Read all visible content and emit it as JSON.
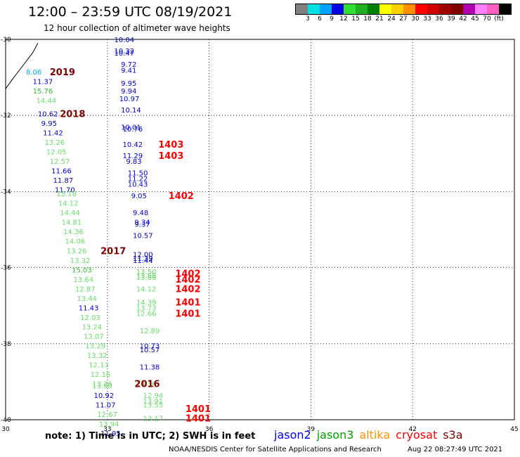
{
  "title": "12:00 – 23:59 UTC 08/19/2021",
  "subtitle": "12 hour collection of altimeter wave heights",
  "scale": {
    "colors": [
      "#808080",
      "#00e0e0",
      "#00a0ff",
      "#0000e0",
      "#30e030",
      "#20b020",
      "#008000",
      "#ffff00",
      "#ffd000",
      "#ff9000",
      "#ff0000",
      "#d00000",
      "#a00000",
      "#800000",
      "#b000b0",
      "#ff80ff",
      "#ff60c0",
      "#000000"
    ],
    "labels": [
      "3",
      "6",
      "9",
      "12",
      "15",
      "18",
      "21",
      "24",
      "27",
      "30",
      "33",
      "36",
      "39",
      "42",
      "45",
      "70",
      "(ft)"
    ]
  },
  "axes": {
    "x_ticks": [
      "30",
      "33",
      "36",
      "39",
      "42",
      "45"
    ],
    "y_ticks": [
      "-30",
      "-32",
      "-34",
      "-36",
      "-38",
      "-40"
    ],
    "x_range": [
      30,
      45
    ],
    "y_range": [
      -40,
      -30
    ]
  },
  "note": "note:  1) Time is in UTC;  2) SWH is in feet",
  "legend": [
    {
      "name": "jason2",
      "color": "#0000ff"
    },
    {
      "name": "jason3",
      "color": "#00a000"
    },
    {
      "name": "altika",
      "color": "#ff9000"
    },
    {
      "name": "cryosat",
      "color": "#ff0000"
    },
    {
      "name": "s3a",
      "color": "#800000"
    }
  ],
  "credit": "NOAA/NESDIS Center for Satellite Applications and Research",
  "credit_time": "Aug 22 08:27:49 UTC 2021",
  "coast": [
    [
      30.0,
      -31.3
    ],
    [
      30.2,
      -31.05
    ],
    [
      30.5,
      -30.7
    ],
    [
      30.8,
      -30.35
    ],
    [
      30.95,
      -30.1
    ]
  ],
  "obs": [
    {
      "t": "10.04",
      "lon": 33.2,
      "lat": -30.0,
      "c": "#0000cc"
    },
    {
      "t": "10.32",
      "lon": 33.2,
      "lat": -30.3,
      "c": "#0000cc"
    },
    {
      "t": "10.47",
      "lon": 33.2,
      "lat": -30.35,
      "c": "#0000cc"
    },
    {
      "t": "9.72",
      "lon": 33.4,
      "lat": -30.65,
      "c": "#0000cc"
    },
    {
      "t": "9.41",
      "lon": 33.4,
      "lat": -30.8,
      "c": "#0000cc"
    },
    {
      "t": "9.95",
      "lon": 33.4,
      "lat": -31.15,
      "c": "#0000cc"
    },
    {
      "t": "9.94",
      "lon": 33.4,
      "lat": -31.35,
      "c": "#0000cc"
    },
    {
      "t": "10.97",
      "lon": 33.35,
      "lat": -31.55,
      "c": "#0000cc"
    },
    {
      "t": "10.14",
      "lon": 33.4,
      "lat": -31.85,
      "c": "#0000cc"
    },
    {
      "t": "10.01",
      "lon": 33.4,
      "lat": -32.3,
      "c": "#0000cc"
    },
    {
      "t": "10.76",
      "lon": 33.45,
      "lat": -32.35,
      "c": "#0000cc"
    },
    {
      "t": "10.42",
      "lon": 33.45,
      "lat": -32.75,
      "c": "#0000cc"
    },
    {
      "t": "11.29",
      "lon": 33.45,
      "lat": -33.05,
      "c": "#0000cc"
    },
    {
      "t": "9.83",
      "lon": 33.55,
      "lat": -33.2,
      "c": "#0000cc"
    },
    {
      "t": "11.50",
      "lon": 33.6,
      "lat": -33.5,
      "c": "#0000cc"
    },
    {
      "t": "11.22",
      "lon": 33.6,
      "lat": -33.65,
      "c": "#0000cc"
    },
    {
      "t": "10.43",
      "lon": 33.6,
      "lat": -33.8,
      "c": "#0000cc"
    },
    {
      "t": "9.05",
      "lon": 33.7,
      "lat": -34.1,
      "c": "#0000cc"
    },
    {
      "t": "9.48",
      "lon": 33.75,
      "lat": -34.55,
      "c": "#0000cc"
    },
    {
      "t": "9.34",
      "lon": 33.8,
      "lat": -34.8,
      "c": "#0000cc"
    },
    {
      "t": "9.37",
      "lon": 33.8,
      "lat": -34.85,
      "c": "#0000cc"
    },
    {
      "t": "10.57",
      "lon": 33.75,
      "lat": -35.15,
      "c": "#0000cc"
    },
    {
      "t": "12.00",
      "lon": 33.75,
      "lat": -35.65,
      "c": "#0000cc"
    },
    {
      "t": "11.39",
      "lon": 33.75,
      "lat": -35.75,
      "c": "#0000cc"
    },
    {
      "t": "11.44",
      "lon": 33.75,
      "lat": -35.8,
      "c": "#0000cc"
    },
    {
      "t": "13.50",
      "lon": 33.85,
      "lat": -36.1,
      "c": "#66dd66"
    },
    {
      "t": "13.68",
      "lon": 33.85,
      "lat": -36.2,
      "c": "#66dd66"
    },
    {
      "t": "13.88",
      "lon": 33.85,
      "lat": -36.25,
      "c": "#66dd66"
    },
    {
      "t": "14.12",
      "lon": 33.85,
      "lat": -36.55,
      "c": "#66dd66"
    },
    {
      "t": "14.39",
      "lon": 33.85,
      "lat": -36.9,
      "c": "#66dd66"
    },
    {
      "t": "13.73",
      "lon": 33.85,
      "lat": -37.05,
      "c": "#66dd66"
    },
    {
      "t": "12.66",
      "lon": 33.85,
      "lat": -37.2,
      "c": "#66dd66"
    },
    {
      "t": "12.89",
      "lon": 33.95,
      "lat": -37.65,
      "c": "#66dd66"
    },
    {
      "t": "10.73",
      "lon": 33.95,
      "lat": -38.05,
      "c": "#0000cc"
    },
    {
      "t": "10.57",
      "lon": 33.95,
      "lat": -38.15,
      "c": "#0000cc"
    },
    {
      "t": "11.38",
      "lon": 33.95,
      "lat": -38.6,
      "c": "#0000cc"
    },
    {
      "t": "14.36",
      "lon": 33.85,
      "lat": -39.05,
      "c": "#66dd66"
    },
    {
      "t": "12.94",
      "lon": 34.05,
      "lat": -39.35,
      "c": "#66dd66"
    },
    {
      "t": "13.91",
      "lon": 34.05,
      "lat": -39.5,
      "c": "#66dd66"
    },
    {
      "t": "13.55",
      "lon": 34.05,
      "lat": -39.6,
      "c": "#66dd66"
    },
    {
      "t": "13.17",
      "lon": 34.05,
      "lat": -39.95,
      "c": "#66dd66"
    },
    {
      "t": "8.06",
      "lon": 30.6,
      "lat": -30.85,
      "c": "#00aaee"
    },
    {
      "t": "11.37",
      "lon": 30.8,
      "lat": -31.1,
      "c": "#0000cc"
    },
    {
      "t": "15.76",
      "lon": 30.8,
      "lat": -31.35,
      "c": "#33bb33"
    },
    {
      "t": "14.44",
      "lon": 30.9,
      "lat": -31.6,
      "c": "#66dd66"
    },
    {
      "t": "10.62",
      "lon": 30.95,
      "lat": -31.95,
      "c": "#0000cc"
    },
    {
      "t": "9.95",
      "lon": 31.05,
      "lat": -32.2,
      "c": "#0000cc"
    },
    {
      "t": "11.42",
      "lon": 31.1,
      "lat": -32.45,
      "c": "#0000cc"
    },
    {
      "t": "13.26",
      "lon": 31.15,
      "lat": -32.7,
      "c": "#66dd66"
    },
    {
      "t": "12.05",
      "lon": 31.2,
      "lat": -32.95,
      "c": "#66dd66"
    },
    {
      "t": "12.57",
      "lon": 31.3,
      "lat": -33.2,
      "c": "#66dd66"
    },
    {
      "t": "11.66",
      "lon": 31.35,
      "lat": -33.45,
      "c": "#0000cc"
    },
    {
      "t": "11.87",
      "lon": 31.4,
      "lat": -33.7,
      "c": "#0000cc"
    },
    {
      "t": "11.70",
      "lon": 31.45,
      "lat": -33.95,
      "c": "#0000cc"
    },
    {
      "t": "13.18",
      "lon": 31.5,
      "lat": -34.05,
      "c": "#66dd66"
    },
    {
      "t": "14.12",
      "lon": 31.55,
      "lat": -34.3,
      "c": "#66dd66"
    },
    {
      "t": "14.44",
      "lon": 31.6,
      "lat": -34.55,
      "c": "#66dd66"
    },
    {
      "t": "14.81",
      "lon": 31.65,
      "lat": -34.8,
      "c": "#66dd66"
    },
    {
      "t": "14.36",
      "lon": 31.7,
      "lat": -35.05,
      "c": "#66dd66"
    },
    {
      "t": "14.06",
      "lon": 31.75,
      "lat": -35.3,
      "c": "#66dd66"
    },
    {
      "t": "13.26",
      "lon": 31.8,
      "lat": -35.55,
      "c": "#66dd66"
    },
    {
      "t": "13.32",
      "lon": 31.9,
      "lat": -35.8,
      "c": "#66dd66"
    },
    {
      "t": "15.03",
      "lon": 31.95,
      "lat": -36.05,
      "c": "#33bb33"
    },
    {
      "t": "13.64",
      "lon": 32.0,
      "lat": -36.3,
      "c": "#66dd66"
    },
    {
      "t": "12.87",
      "lon": 32.05,
      "lat": -36.55,
      "c": "#66dd66"
    },
    {
      "t": "13.44",
      "lon": 32.1,
      "lat": -36.8,
      "c": "#66dd66"
    },
    {
      "t": "11.43",
      "lon": 32.15,
      "lat": -37.05,
      "c": "#0000cc"
    },
    {
      "t": "12.03",
      "lon": 32.2,
      "lat": -37.3,
      "c": "#66dd66"
    },
    {
      "t": "13.24",
      "lon": 32.25,
      "lat": -37.55,
      "c": "#66dd66"
    },
    {
      "t": "13.07",
      "lon": 32.3,
      "lat": -37.8,
      "c": "#66dd66"
    },
    {
      "t": "13.29",
      "lon": 32.35,
      "lat": -38.05,
      "c": "#66dd66"
    },
    {
      "t": "13.32",
      "lon": 32.4,
      "lat": -38.3,
      "c": "#66dd66"
    },
    {
      "t": "12.13",
      "lon": 32.45,
      "lat": -38.55,
      "c": "#66dd66"
    },
    {
      "t": "12.16",
      "lon": 32.5,
      "lat": -38.8,
      "c": "#66dd66"
    },
    {
      "t": "13.26",
      "lon": 32.55,
      "lat": -39.05,
      "c": "#66dd66"
    },
    {
      "t": "13.90",
      "lon": 32.55,
      "lat": -39.1,
      "c": "#66dd66"
    },
    {
      "t": "10.92",
      "lon": 32.6,
      "lat": -39.35,
      "c": "#0000cc"
    },
    {
      "t": "11.07",
      "lon": 32.65,
      "lat": -39.6,
      "c": "#0000cc"
    },
    {
      "t": "12.67",
      "lon": 32.7,
      "lat": -39.85,
      "c": "#66dd66"
    },
    {
      "t": "13.94",
      "lon": 32.75,
      "lat": -40.1,
      "c": "#66dd66"
    },
    {
      "t": "11.95",
      "lon": 32.8,
      "lat": -40.35,
      "c": "#0000cc"
    }
  ],
  "tags": [
    {
      "t": "2019",
      "lon": 31.3,
      "lat": -30.85,
      "c": "#800000"
    },
    {
      "t": "2018",
      "lon": 31.6,
      "lat": -31.95,
      "c": "#800000"
    },
    {
      "t": "1403",
      "lon": 34.5,
      "lat": -32.75,
      "c": "#ff0000"
    },
    {
      "t": "1403",
      "lon": 34.5,
      "lat": -33.05,
      "c": "#ff0000"
    },
    {
      "t": "1402",
      "lon": 34.8,
      "lat": -34.1,
      "c": "#ff0000"
    },
    {
      "t": "2017",
      "lon": 32.8,
      "lat": -35.55,
      "c": "#800000"
    },
    {
      "t": "1402",
      "lon": 35.0,
      "lat": -36.15,
      "c": "#ff0000"
    },
    {
      "t": "1402",
      "lon": 35.0,
      "lat": -36.3,
      "c": "#ff0000"
    },
    {
      "t": "1402",
      "lon": 35.0,
      "lat": -36.55,
      "c": "#ff0000"
    },
    {
      "t": "1401",
      "lon": 35.0,
      "lat": -36.9,
      "c": "#ff0000"
    },
    {
      "t": "1401",
      "lon": 35.0,
      "lat": -37.2,
      "c": "#ff0000"
    },
    {
      "t": "2016",
      "lon": 33.8,
      "lat": -39.05,
      "c": "#800000"
    },
    {
      "t": "1401",
      "lon": 35.3,
      "lat": -39.7,
      "c": "#ff0000"
    },
    {
      "t": "1401",
      "lon": 35.3,
      "lat": -39.95,
      "c": "#ff0000"
    }
  ]
}
